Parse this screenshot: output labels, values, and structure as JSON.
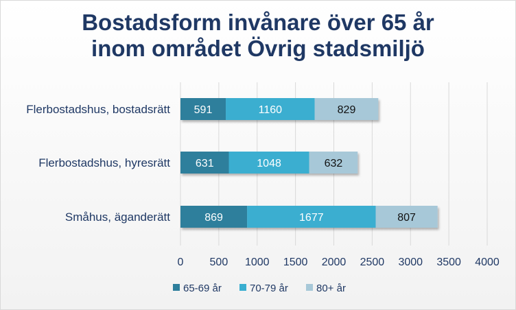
{
  "chart_data": {
    "type": "bar",
    "orientation": "horizontal",
    "stacked": true,
    "title": [
      "Bostadsform invånare över 65 år",
      "inom området Övrig stadsmiljö"
    ],
    "categories": [
      "Flerbostadshus, bostadsrätt",
      "Flerbostadshus, hyresrätt",
      "Småhus, äganderätt"
    ],
    "series": [
      {
        "name": "65-69 år",
        "values": [
          591,
          631,
          869
        ],
        "color": "#2e7f9c",
        "label_color": "#ffffff"
      },
      {
        "name": "70-79 år",
        "values": [
          1160,
          1048,
          1677
        ],
        "color": "#3aaed0",
        "label_color": "#ffffff"
      },
      {
        "name": "80+ år",
        "values": [
          829,
          632,
          807
        ],
        "color": "#a7c8d8",
        "label_color": "#111111"
      }
    ],
    "xlim": [
      0,
      4000
    ],
    "xticks": [
      0,
      500,
      1000,
      1500,
      2000,
      2500,
      3000,
      3500,
      4000
    ],
    "grid": true,
    "legend_position": "bottom"
  }
}
